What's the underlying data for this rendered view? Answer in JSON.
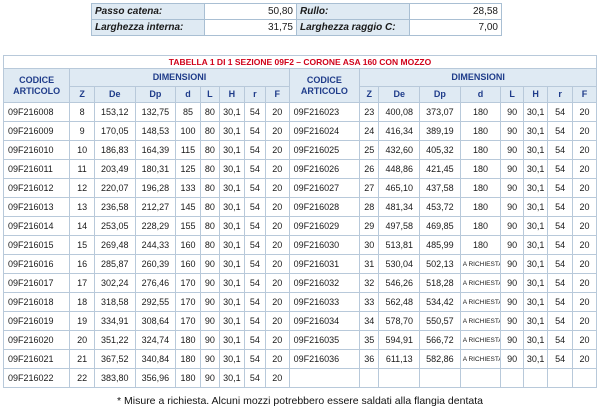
{
  "specs": {
    "passo_label": "Passo catena:",
    "passo_value": "50,80",
    "rullo_label": "Rullo:",
    "rullo_value": "28,58",
    "larghezza_label": "Larghezza interna:",
    "larghezza_value": "31,75",
    "raggio_label": "Larghezza raggio C:",
    "raggio_value": "7,00"
  },
  "table": {
    "title": "TABELLA 1 DI 1 SEZIONE 09F2 – CORONE ASA 160 CON MOZZO",
    "codice_label": "CODICE ARTICOLO",
    "dimensioni_label": "DIMENSIONI",
    "cols": [
      "Z",
      "De",
      "Dp",
      "d",
      "L",
      "H",
      "r",
      "F"
    ],
    "left_rows": [
      [
        "09F216008",
        "8",
        "153,12",
        "132,75",
        "85",
        "80",
        "30,1",
        "54",
        "20"
      ],
      [
        "09F216009",
        "9",
        "170,05",
        "148,53",
        "100",
        "80",
        "30,1",
        "54",
        "20"
      ],
      [
        "09F216010",
        "10",
        "186,83",
        "164,39",
        "115",
        "80",
        "30,1",
        "54",
        "20"
      ],
      [
        "09F216011",
        "11",
        "203,49",
        "180,31",
        "125",
        "80",
        "30,1",
        "54",
        "20"
      ],
      [
        "09F216012",
        "12",
        "220,07",
        "196,28",
        "133",
        "80",
        "30,1",
        "54",
        "20"
      ],
      [
        "09F216013",
        "13",
        "236,58",
        "212,27",
        "145",
        "80",
        "30,1",
        "54",
        "20"
      ],
      [
        "09F216014",
        "14",
        "253,05",
        "228,29",
        "155",
        "80",
        "30,1",
        "54",
        "20"
      ],
      [
        "09F216015",
        "15",
        "269,48",
        "244,33",
        "160",
        "80",
        "30,1",
        "54",
        "20"
      ],
      [
        "09F216016",
        "16",
        "285,87",
        "260,39",
        "160",
        "90",
        "30,1",
        "54",
        "20"
      ],
      [
        "09F216017",
        "17",
        "302,24",
        "276,46",
        "170",
        "90",
        "30,1",
        "54",
        "20"
      ],
      [
        "09F216018",
        "18",
        "318,58",
        "292,55",
        "170",
        "90",
        "30,1",
        "54",
        "20"
      ],
      [
        "09F216019",
        "19",
        "334,91",
        "308,64",
        "170",
        "90",
        "30,1",
        "54",
        "20"
      ],
      [
        "09F216020",
        "20",
        "351,22",
        "324,74",
        "180",
        "90",
        "30,1",
        "54",
        "20"
      ],
      [
        "09F216021",
        "21",
        "367,52",
        "340,84",
        "180",
        "90",
        "30,1",
        "54",
        "20"
      ],
      [
        "09F216022",
        "22",
        "383,80",
        "356,96",
        "180",
        "90",
        "30,1",
        "54",
        "20"
      ]
    ],
    "right_rows": [
      [
        "09F216023",
        "23",
        "400,08",
        "373,07",
        "180",
        "90",
        "30,1",
        "54",
        "20"
      ],
      [
        "09F216024",
        "24",
        "416,34",
        "389,19",
        "180",
        "90",
        "30,1",
        "54",
        "20"
      ],
      [
        "09F216025",
        "25",
        "432,60",
        "405,32",
        "180",
        "90",
        "30,1",
        "54",
        "20"
      ],
      [
        "09F216026",
        "26",
        "448,86",
        "421,45",
        "180",
        "90",
        "30,1",
        "54",
        "20"
      ],
      [
        "09F216027",
        "27",
        "465,10",
        "437,58",
        "180",
        "90",
        "30,1",
        "54",
        "20"
      ],
      [
        "09F216028",
        "28",
        "481,34",
        "453,72",
        "180",
        "90",
        "30,1",
        "54",
        "20"
      ],
      [
        "09F216029",
        "29",
        "497,58",
        "469,85",
        "180",
        "90",
        "30,1",
        "54",
        "20"
      ],
      [
        "09F216030",
        "30",
        "513,81",
        "485,99",
        "180",
        "90",
        "30,1",
        "54",
        "20"
      ],
      [
        "09F216031",
        "31",
        "530,04",
        "502,13",
        "A RICHIESTA*",
        "90",
        "30,1",
        "54",
        "20"
      ],
      [
        "09F216032",
        "32",
        "546,26",
        "518,28",
        "A RICHIESTA*",
        "90",
        "30,1",
        "54",
        "20"
      ],
      [
        "09F216033",
        "33",
        "562,48",
        "534,42",
        "A RICHIESTA*",
        "90",
        "30,1",
        "54",
        "20"
      ],
      [
        "09F216034",
        "34",
        "578,70",
        "550,57",
        "A RICHIESTA*",
        "90",
        "30,1",
        "54",
        "20"
      ],
      [
        "09F216035",
        "35",
        "594,91",
        "566,72",
        "A RICHIESTA*",
        "90",
        "30,1",
        "54",
        "20"
      ],
      [
        "09F216036",
        "36",
        "611,13",
        "582,86",
        "A RICHIESTA*",
        "90",
        "30,1",
        "54",
        "20"
      ]
    ]
  },
  "footnote": "* Misure a richiesta. Alcuni mozzi potrebbero essere saldati alla flangia dentata"
}
